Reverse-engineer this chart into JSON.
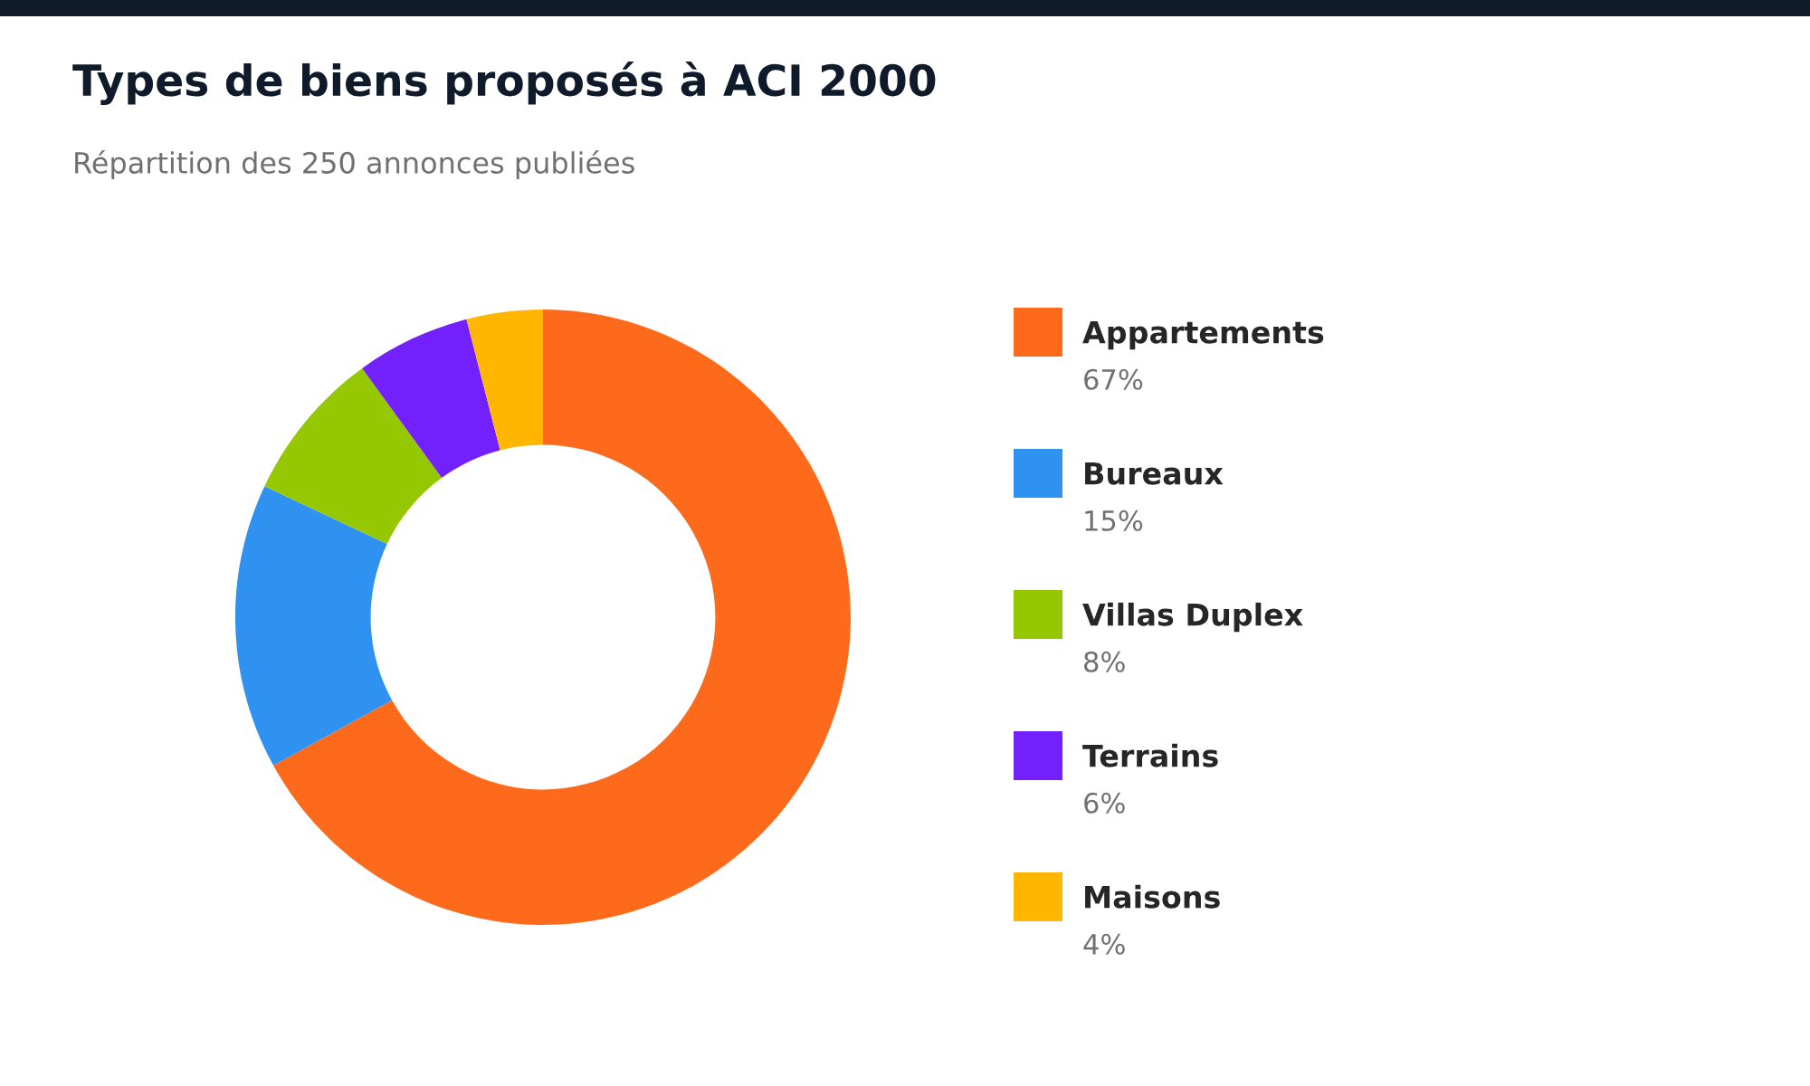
{
  "chart_data": {
    "type": "donut",
    "title": "Types de biens proposés à ACI 2000",
    "subtitle": "Répartition des 250 annonces publiées",
    "categories": [
      "Appartements",
      "Bureaux",
      "Villas Duplex",
      "Terrains",
      "Maisons"
    ],
    "values": [
      67,
      15,
      8,
      6,
      4
    ],
    "colors": [
      "#fd6a1b",
      "#2f92f0",
      "#95c800",
      "#7220fc",
      "#ffb600"
    ],
    "value_labels": [
      "67%",
      "15%",
      "8%",
      "6%",
      "4%"
    ],
    "legend": "right"
  }
}
